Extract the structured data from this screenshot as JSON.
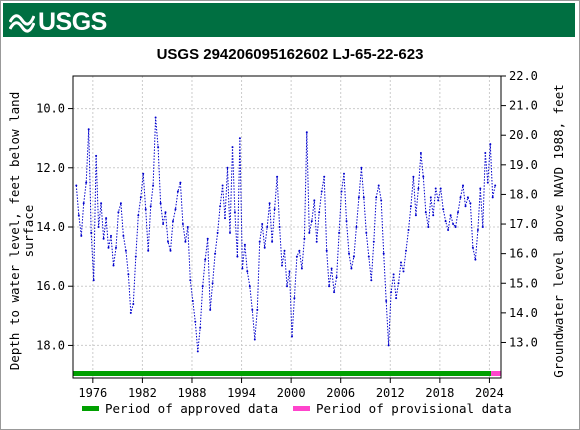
{
  "banner": {
    "logo_text": "USGS"
  },
  "chart_data": {
    "type": "scatter",
    "title": "USGS 294206095162602 LJ-65-22-623",
    "ylabel_left": [
      "Depth to water level, feet below land",
      "surface"
    ],
    "ylabel_right": "Groundwater level above NAVD 1988, feet",
    "xlim": [
      1973.6,
      2025.4
    ],
    "ylim": [
      19.1,
      8.9
    ],
    "x_ticks": [
      1976,
      1982,
      1988,
      1994,
      2000,
      2006,
      2012,
      2018,
      2024
    ],
    "y_ticks_left": [
      10.0,
      12.0,
      14.0,
      16.0,
      18.0
    ],
    "y_ticks_left_labels": [
      "10.0",
      "12.0",
      "14.0",
      "16.0",
      "18.0"
    ],
    "y_ticks_right": [
      22.0,
      21.0,
      20.0,
      19.0,
      18.0,
      17.0,
      16.0,
      15.0,
      14.0,
      13.0
    ],
    "y_ticks_right_labels": [
      "22.0",
      "21.0",
      "20.0",
      "19.0",
      "18.0",
      "17.0",
      "16.0",
      "15.0",
      "14.0",
      "13.0"
    ],
    "right_axis_offset": 30.9,
    "grid": true,
    "series_color": "#0000cc",
    "series": [
      {
        "points": [
          [
            1974.0,
            12.6
          ],
          [
            1974.3,
            13.6
          ],
          [
            1974.6,
            14.3
          ],
          [
            1974.9,
            13.2
          ],
          [
            1975.2,
            12.5
          ],
          [
            1975.5,
            10.7
          ],
          [
            1975.8,
            14.2
          ],
          [
            1976.1,
            15.8
          ],
          [
            1976.4,
            11.6
          ],
          [
            1976.7,
            14.0
          ],
          [
            1977.0,
            13.2
          ],
          [
            1977.3,
            14.4
          ],
          [
            1977.6,
            13.7
          ],
          [
            1977.9,
            14.7
          ],
          [
            1978.2,
            14.3
          ],
          [
            1978.5,
            15.3
          ],
          [
            1978.8,
            14.7
          ],
          [
            1979.1,
            13.5
          ],
          [
            1979.4,
            13.2
          ],
          [
            1979.7,
            14.3
          ],
          [
            1980.0,
            14.8
          ],
          [
            1980.3,
            15.6
          ],
          [
            1980.6,
            16.9
          ],
          [
            1980.9,
            16.6
          ],
          [
            1981.2,
            15.0
          ],
          [
            1981.5,
            13.6
          ],
          [
            1981.8,
            13.0
          ],
          [
            1982.1,
            12.2
          ],
          [
            1982.4,
            13.4
          ],
          [
            1982.7,
            14.8
          ],
          [
            1983.0,
            13.3
          ],
          [
            1983.3,
            12.6
          ],
          [
            1983.6,
            10.3
          ],
          [
            1983.9,
            11.3
          ],
          [
            1984.2,
            13.2
          ],
          [
            1984.5,
            13.9
          ],
          [
            1984.8,
            13.5
          ],
          [
            1985.1,
            14.5
          ],
          [
            1985.4,
            14.8
          ],
          [
            1985.7,
            13.8
          ],
          [
            1986.0,
            13.4
          ],
          [
            1986.3,
            12.8
          ],
          [
            1986.6,
            12.5
          ],
          [
            1986.9,
            13.9
          ],
          [
            1987.2,
            14.5
          ],
          [
            1987.5,
            14.0
          ],
          [
            1987.8,
            15.8
          ],
          [
            1988.1,
            16.5
          ],
          [
            1988.4,
            17.2
          ],
          [
            1988.7,
            18.2
          ],
          [
            1989.0,
            17.4
          ],
          [
            1989.3,
            16.0
          ],
          [
            1989.6,
            15.1
          ],
          [
            1989.9,
            14.4
          ],
          [
            1990.2,
            16.8
          ],
          [
            1990.5,
            15.9
          ],
          [
            1990.8,
            14.9
          ],
          [
            1991.1,
            14.2
          ],
          [
            1991.4,
            13.3
          ],
          [
            1991.7,
            12.6
          ],
          [
            1992.0,
            13.7
          ],
          [
            1992.3,
            12.0
          ],
          [
            1992.6,
            14.2
          ],
          [
            1992.9,
            11.3
          ],
          [
            1993.2,
            13.5
          ],
          [
            1993.5,
            15.0
          ],
          [
            1993.8,
            11.0
          ],
          [
            1994.1,
            15.4
          ],
          [
            1994.4,
            14.6
          ],
          [
            1994.7,
            15.5
          ],
          [
            1995.0,
            16.0
          ],
          [
            1995.3,
            16.8
          ],
          [
            1995.6,
            17.8
          ],
          [
            1995.9,
            16.8
          ],
          [
            1996.2,
            14.5
          ],
          [
            1996.5,
            13.9
          ],
          [
            1996.8,
            14.7
          ],
          [
            1997.1,
            14.0
          ],
          [
            1997.4,
            13.2
          ],
          [
            1997.7,
            14.5
          ],
          [
            1998.0,
            13.4
          ],
          [
            1998.3,
            12.3
          ],
          [
            1998.6,
            14.0
          ],
          [
            1998.9,
            15.3
          ],
          [
            1999.2,
            14.8
          ],
          [
            1999.5,
            16.0
          ],
          [
            1999.8,
            15.5
          ],
          [
            2000.1,
            17.7
          ],
          [
            2000.4,
            16.4
          ],
          [
            2000.7,
            15.0
          ],
          [
            2001.0,
            14.8
          ],
          [
            2001.3,
            15.4
          ],
          [
            2001.6,
            14.4
          ],
          [
            2001.9,
            10.8
          ],
          [
            2002.2,
            14.2
          ],
          [
            2002.5,
            13.8
          ],
          [
            2002.8,
            13.1
          ],
          [
            2003.1,
            14.5
          ],
          [
            2003.4,
            13.5
          ],
          [
            2003.7,
            12.8
          ],
          [
            2004.0,
            12.3
          ],
          [
            2004.3,
            14.8
          ],
          [
            2004.6,
            16.0
          ],
          [
            2004.9,
            15.4
          ],
          [
            2005.2,
            16.2
          ],
          [
            2005.5,
            15.7
          ],
          [
            2005.8,
            14.2
          ],
          [
            2006.1,
            12.8
          ],
          [
            2006.4,
            12.2
          ],
          [
            2006.7,
            13.8
          ],
          [
            2007.0,
            14.9
          ],
          [
            2007.3,
            15.4
          ],
          [
            2007.6,
            15.0
          ],
          [
            2007.9,
            14.0
          ],
          [
            2008.2,
            13.0
          ],
          [
            2008.5,
            12.0
          ],
          [
            2008.8,
            13.0
          ],
          [
            2009.1,
            14.2
          ],
          [
            2009.4,
            15.0
          ],
          [
            2009.7,
            15.8
          ],
          [
            2010.0,
            14.5
          ],
          [
            2010.3,
            13.0
          ],
          [
            2010.6,
            12.6
          ],
          [
            2010.9,
            13.1
          ],
          [
            2011.2,
            14.9
          ],
          [
            2011.5,
            16.5
          ],
          [
            2011.8,
            18.0
          ],
          [
            2012.1,
            16.2
          ],
          [
            2012.4,
            15.6
          ],
          [
            2012.7,
            16.4
          ],
          [
            2013.0,
            15.9
          ],
          [
            2013.3,
            15.2
          ],
          [
            2013.6,
            15.5
          ],
          [
            2013.9,
            14.8
          ],
          [
            2014.2,
            14.1
          ],
          [
            2014.5,
            13.3
          ],
          [
            2014.8,
            12.3
          ],
          [
            2015.1,
            13.6
          ],
          [
            2015.4,
            12.7
          ],
          [
            2015.7,
            11.5
          ],
          [
            2016.0,
            12.3
          ],
          [
            2016.3,
            13.5
          ],
          [
            2016.6,
            14.0
          ],
          [
            2016.9,
            13.0
          ],
          [
            2017.2,
            13.6
          ],
          [
            2017.5,
            12.7
          ],
          [
            2017.8,
            13.1
          ],
          [
            2018.1,
            12.7
          ],
          [
            2018.4,
            13.4
          ],
          [
            2018.7,
            13.8
          ],
          [
            2019.0,
            14.1
          ],
          [
            2019.3,
            13.6
          ],
          [
            2019.6,
            13.9
          ],
          [
            2019.9,
            14.0
          ],
          [
            2020.2,
            13.5
          ],
          [
            2020.5,
            13.0
          ],
          [
            2020.8,
            12.6
          ],
          [
            2021.1,
            13.3
          ],
          [
            2021.4,
            13.0
          ],
          [
            2021.7,
            13.2
          ],
          [
            2022.0,
            14.7
          ],
          [
            2022.3,
            15.1
          ],
          [
            2022.6,
            14.1
          ],
          [
            2022.9,
            12.7
          ],
          [
            2023.2,
            14.0
          ],
          [
            2023.5,
            11.5
          ],
          [
            2023.8,
            12.5
          ],
          [
            2024.1,
            11.2
          ],
          [
            2024.4,
            13.0
          ],
          [
            2024.7,
            12.6
          ]
        ]
      }
    ],
    "legend": [
      {
        "label": "Period of approved data",
        "color": "#00a000"
      },
      {
        "label": "Period of provisional data",
        "color": "#ff44cc"
      }
    ],
    "periods": [
      {
        "type": "approved",
        "start": 1973.6,
        "end": 2024.2
      },
      {
        "type": "provisional",
        "start": 2024.2,
        "end": 2025.4
      }
    ]
  }
}
